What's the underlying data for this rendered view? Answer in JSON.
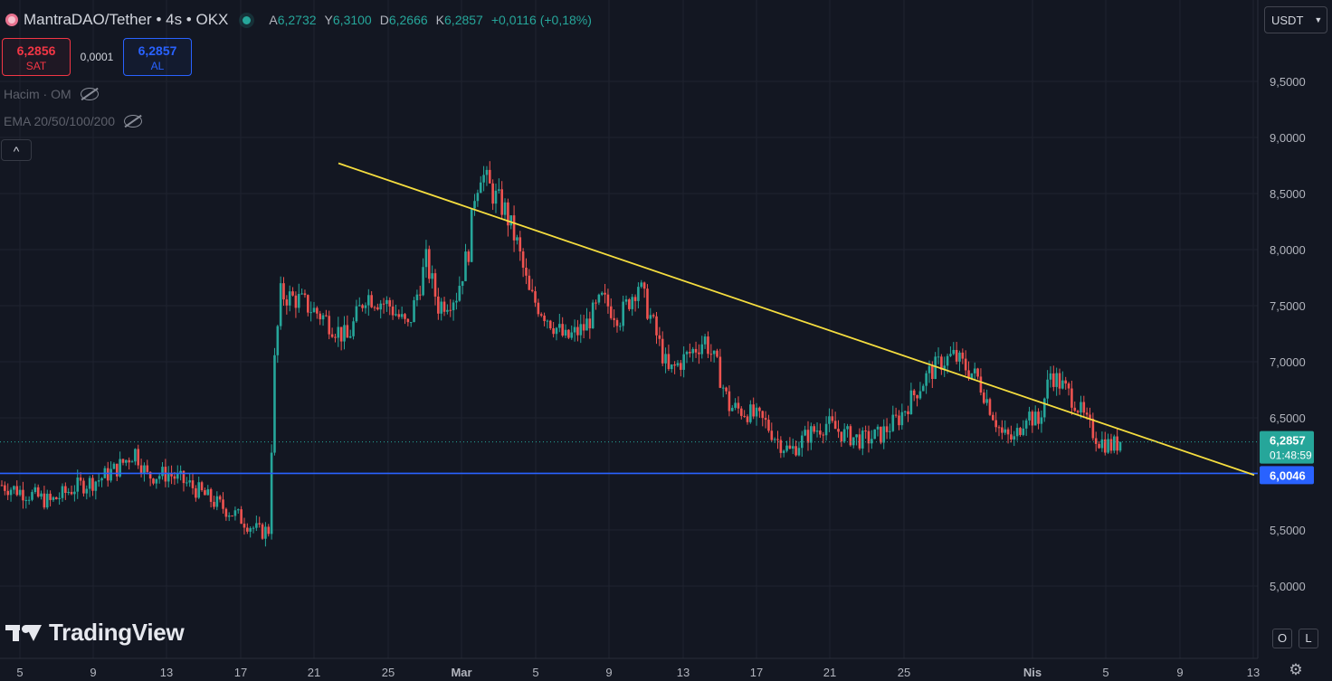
{
  "header": {
    "title": "MantraDAO/Tether • 4s • OKX",
    "ohlc": [
      {
        "key": "A",
        "value": "6,2732"
      },
      {
        "key": "Y",
        "value": "6,3100"
      },
      {
        "key": "D",
        "value": "6,2666"
      },
      {
        "key": "K",
        "value": "6,2857"
      }
    ],
    "change": "+0,0116 (+0,18%)"
  },
  "trade": {
    "sell_price": "6,2856",
    "sell_label": "SAT",
    "spread": "0,0001",
    "buy_price": "6,2857",
    "buy_label": "AL"
  },
  "indicators": [
    {
      "label": "Hacim · OM"
    },
    {
      "label": "EMA 20/50/100/200"
    }
  ],
  "collapse_symbol": "^",
  "currency": {
    "value": "USDT"
  },
  "watermark": "TradingView",
  "controls": {
    "log": "O",
    "auto": "L"
  },
  "colors": {
    "background": "#131722",
    "up": "#26a69a",
    "down": "#ef5350",
    "trendline": "#f5dd3f",
    "support": "#2962ff",
    "grid": "#1f2330"
  },
  "chart_data": {
    "type": "candlestick",
    "y_axis": {
      "position": "right",
      "ylim": [
        4.65,
        10.05
      ],
      "ticks": [
        9.5,
        9.0,
        8.5,
        8.0,
        7.5,
        7.0,
        6.5,
        6.0,
        5.5,
        5.0
      ],
      "tick_labels": [
        "9,5000",
        "9,0000",
        "8,5000",
        "8,0000",
        "7,5000",
        "7,0000",
        "6,5000",
        "6,0000",
        "5,5000",
        "5,0000"
      ]
    },
    "x_axis": {
      "tick_labels": [
        "5",
        "9",
        "13",
        "17",
        "21",
        "25",
        "Mar",
        "5",
        "9",
        "13",
        "17",
        "21",
        "25",
        "Nis",
        "5",
        "9",
        "13"
      ],
      "bold_labels": [
        "Mar",
        "Nis"
      ]
    },
    "grid": true,
    "last_price": {
      "value": 6.2857,
      "label": "6,2857",
      "countdown": "01:48:59"
    },
    "support_level": {
      "value": 6.0046,
      "label": "6,0046"
    },
    "trendline": {
      "start_y": 8.77,
      "end_y": 5.99
    },
    "series_shape": {
      "approx_candles": 370,
      "anchors": [
        [
          0,
          5.9
        ],
        [
          8,
          5.83
        ],
        [
          16,
          5.75
        ],
        [
          24,
          5.88
        ],
        [
          32,
          5.95
        ],
        [
          38,
          6.05
        ],
        [
          44,
          6.2
        ],
        [
          48,
          5.98
        ],
        [
          55,
          6.0
        ],
        [
          62,
          5.9
        ],
        [
          70,
          5.75
        ],
        [
          78,
          5.62
        ],
        [
          85,
          5.48
        ],
        [
          88,
          5.5
        ],
        [
          90,
          7.0
        ],
        [
          92,
          7.6
        ],
        [
          98,
          7.55
        ],
        [
          106,
          7.4
        ],
        [
          114,
          7.2
        ],
        [
          120,
          7.6
        ],
        [
          128,
          7.5
        ],
        [
          134,
          7.3
        ],
        [
          140,
          7.9
        ],
        [
          144,
          7.5
        ],
        [
          150,
          7.6
        ],
        [
          154,
          8.0
        ],
        [
          156,
          8.5
        ],
        [
          158,
          8.7
        ],
        [
          162,
          8.5
        ],
        [
          166,
          8.35
        ],
        [
          170,
          8.05
        ],
        [
          174,
          7.6
        ],
        [
          180,
          7.4
        ],
        [
          186,
          7.2
        ],
        [
          192,
          7.3
        ],
        [
          198,
          7.55
        ],
        [
          204,
          7.4
        ],
        [
          210,
          7.7
        ],
        [
          214,
          7.4
        ],
        [
          220,
          6.9
        ],
        [
          226,
          7.05
        ],
        [
          232,
          7.2
        ],
        [
          236,
          6.95
        ],
        [
          240,
          6.6
        ],
        [
          246,
          6.55
        ],
        [
          252,
          6.45
        ],
        [
          256,
          6.3
        ],
        [
          260,
          6.2
        ],
        [
          266,
          6.35
        ],
        [
          272,
          6.45
        ],
        [
          278,
          6.35
        ],
        [
          284,
          6.3
        ],
        [
          290,
          6.35
        ],
        [
          296,
          6.5
        ],
        [
          302,
          6.75
        ],
        [
          306,
          6.9
        ],
        [
          310,
          7.0
        ],
        [
          314,
          7.05
        ],
        [
          318,
          6.95
        ],
        [
          322,
          6.85
        ],
        [
          326,
          6.6
        ],
        [
          330,
          6.35
        ],
        [
          334,
          6.3
        ],
        [
          338,
          6.55
        ],
        [
          342,
          6.45
        ],
        [
          346,
          6.9
        ],
        [
          350,
          6.78
        ],
        [
          354,
          6.65
        ],
        [
          358,
          6.45
        ],
        [
          362,
          6.3
        ],
        [
          366,
          6.25
        ],
        [
          369,
          6.28
        ]
      ]
    }
  }
}
